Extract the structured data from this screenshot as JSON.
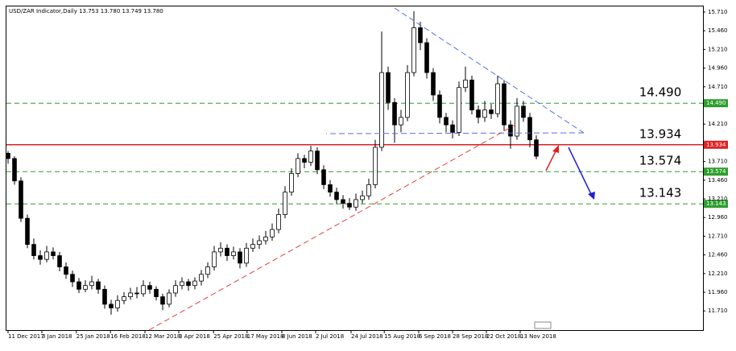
{
  "chart_data": {
    "type": "candlestick",
    "title": "USD/ZAR Indicator,Daily  13.753 13.780 13.749 13.780",
    "up_color": "#ffffff",
    "down_color": "#000000",
    "wick_color": "#000000",
    "xlim": [
      -0.25,
      107.875
    ],
    "ylim": [
      11.454,
      15.785
    ],
    "yticks": [
      {
        "value": 15.71,
        "label": "15.710"
      },
      {
        "value": 15.46,
        "label": "15.460"
      },
      {
        "value": 15.21,
        "label": "15.210"
      },
      {
        "value": 14.96,
        "label": "14.960"
      },
      {
        "value": 14.71,
        "label": "14.710"
      },
      {
        "value": 14.21,
        "label": "14.210"
      },
      {
        "value": 13.71,
        "label": "13.710"
      },
      {
        "value": 13.46,
        "label": "13.460"
      },
      {
        "value": 13.21,
        "label": "13.210"
      },
      {
        "value": 12.96,
        "label": "12.960"
      },
      {
        "value": 12.71,
        "label": "12.710"
      },
      {
        "value": 12.46,
        "label": "12.460"
      },
      {
        "value": 12.21,
        "label": "12.210"
      },
      {
        "value": 11.96,
        "label": "11.960"
      },
      {
        "value": 11.71,
        "label": "11.710"
      }
    ],
    "xticks": [
      {
        "value": 0,
        "label": "11 Dec 2017"
      },
      {
        "value": 5.25,
        "label": "3 Jan 2018"
      },
      {
        "value": 10.6,
        "label": "25 Jan 2018"
      },
      {
        "value": 15.9,
        "label": "16 Feb 2018"
      },
      {
        "value": 21.25,
        "label": "12 Mar 2018"
      },
      {
        "value": 26.5,
        "label": "3 Apr 2018"
      },
      {
        "value": 31.9,
        "label": "25 Apr 2018"
      },
      {
        "value": 37.1,
        "label": "17 May 2018"
      },
      {
        "value": 42.5,
        "label": "8 Jun 2018"
      },
      {
        "value": 47.75,
        "label": "2 Jul 2018"
      },
      {
        "value": 53.25,
        "label": "24 Jul 2018"
      },
      {
        "value": 58.4,
        "label": "15 Aug 2018"
      },
      {
        "value": 63.75,
        "label": "6 Sep 2018"
      },
      {
        "value": 69,
        "label": "28 Sep 2018"
      },
      {
        "value": 74.25,
        "label": "22 Oct 2018"
      },
      {
        "value": 79.5,
        "label": "13 Nov 2018"
      }
    ],
    "levels": [
      {
        "value": 14.49,
        "label": "14.490",
        "color": "#2e9e2e",
        "style": "dashed"
      },
      {
        "value": 13.934,
        "label": "13.934",
        "color": "#e02020",
        "style": "solid"
      },
      {
        "value": 13.574,
        "label": "13.574",
        "color": "#2e9e2e",
        "style": "dashed"
      },
      {
        "value": 13.143,
        "label": "13.143",
        "color": "#2e9e2e",
        "style": "dashed"
      }
    ],
    "candles": [
      [
        13.82,
        13.85,
        13.68,
        13.75
      ],
      [
        13.75,
        13.78,
        13.4,
        13.45
      ],
      [
        13.45,
        13.5,
        12.9,
        12.95
      ],
      [
        12.95,
        13.0,
        12.55,
        12.6
      ],
      [
        12.6,
        12.68,
        12.4,
        12.45
      ],
      [
        12.45,
        12.52,
        12.33,
        12.4
      ],
      [
        12.4,
        12.58,
        12.36,
        12.5
      ],
      [
        12.5,
        12.56,
        12.4,
        12.45
      ],
      [
        12.45,
        12.5,
        12.24,
        12.3
      ],
      [
        12.3,
        12.36,
        12.14,
        12.2
      ],
      [
        12.2,
        12.25,
        12.03,
        12.1
      ],
      [
        12.1,
        12.15,
        11.95,
        12.0
      ],
      [
        12.0,
        12.12,
        11.96,
        12.05
      ],
      [
        12.05,
        12.18,
        12.0,
        12.1
      ],
      [
        12.1,
        12.14,
        11.94,
        12.0
      ],
      [
        12.0,
        12.05,
        11.74,
        11.8
      ],
      [
        11.8,
        11.86,
        11.66,
        11.75
      ],
      [
        11.75,
        11.92,
        11.7,
        11.85
      ],
      [
        11.85,
        11.96,
        11.8,
        11.9
      ],
      [
        11.9,
        12.02,
        11.86,
        11.95
      ],
      [
        11.95,
        12.03,
        11.88,
        11.94
      ],
      [
        11.94,
        12.12,
        11.9,
        12.05
      ],
      [
        12.05,
        12.1,
        11.94,
        12.0
      ],
      [
        12.0,
        12.04,
        11.85,
        11.9
      ],
      [
        11.9,
        11.94,
        11.72,
        11.8
      ],
      [
        11.8,
        12.0,
        11.76,
        11.95
      ],
      [
        11.95,
        12.12,
        11.9,
        12.05
      ],
      [
        12.05,
        12.16,
        12.0,
        12.1
      ],
      [
        12.1,
        12.14,
        11.98,
        12.05
      ],
      [
        12.05,
        12.16,
        12.0,
        12.11
      ],
      [
        12.11,
        12.26,
        12.05,
        12.2
      ],
      [
        12.2,
        12.36,
        12.15,
        12.3
      ],
      [
        12.3,
        12.58,
        12.25,
        12.5
      ],
      [
        12.5,
        12.63,
        12.44,
        12.55
      ],
      [
        12.55,
        12.6,
        12.38,
        12.45
      ],
      [
        12.45,
        12.57,
        12.4,
        12.5
      ],
      [
        12.5,
        12.55,
        12.28,
        12.35
      ],
      [
        12.35,
        12.62,
        12.3,
        12.55
      ],
      [
        12.55,
        12.68,
        12.5,
        12.6
      ],
      [
        12.6,
        12.72,
        12.54,
        12.65
      ],
      [
        12.65,
        12.78,
        12.6,
        12.7
      ],
      [
        12.7,
        12.88,
        12.65,
        12.8
      ],
      [
        12.8,
        13.08,
        12.75,
        13.0
      ],
      [
        13.0,
        13.38,
        12.95,
        13.3
      ],
      [
        13.3,
        13.62,
        13.25,
        13.55
      ],
      [
        13.55,
        13.82,
        13.5,
        13.75
      ],
      [
        13.75,
        13.8,
        13.62,
        13.7
      ],
      [
        13.7,
        13.92,
        13.65,
        13.85
      ],
      [
        13.85,
        13.9,
        13.54,
        13.6
      ],
      [
        13.6,
        13.66,
        13.34,
        13.4
      ],
      [
        13.4,
        13.46,
        13.24,
        13.3
      ],
      [
        13.3,
        13.36,
        13.14,
        13.2
      ],
      [
        13.2,
        13.26,
        13.08,
        13.15
      ],
      [
        13.15,
        13.22,
        13.06,
        13.1
      ],
      [
        13.1,
        13.28,
        13.05,
        13.2
      ],
      [
        13.2,
        13.32,
        13.15,
        13.25
      ],
      [
        13.25,
        13.48,
        13.2,
        13.4
      ],
      [
        13.4,
        14.0,
        13.35,
        13.9
      ],
      [
        13.9,
        15.45,
        13.85,
        14.9
      ],
      [
        14.9,
        14.98,
        14.4,
        14.5
      ],
      [
        14.5,
        14.56,
        13.96,
        14.2
      ],
      [
        14.2,
        14.4,
        14.1,
        14.3
      ],
      [
        14.3,
        15.0,
        14.25,
        14.9
      ],
      [
        14.9,
        15.72,
        14.85,
        15.5
      ],
      [
        15.5,
        15.58,
        15.2,
        15.3
      ],
      [
        15.3,
        15.36,
        14.82,
        14.9
      ],
      [
        14.9,
        14.96,
        14.52,
        14.6
      ],
      [
        14.6,
        14.66,
        14.22,
        14.3
      ],
      [
        14.3,
        14.36,
        14.1,
        14.2
      ],
      [
        14.2,
        14.26,
        14.02,
        14.1
      ],
      [
        14.1,
        14.78,
        14.05,
        14.7
      ],
      [
        14.7,
        14.98,
        14.64,
        14.8
      ],
      [
        14.8,
        14.86,
        14.34,
        14.4
      ],
      [
        14.4,
        14.46,
        14.22,
        14.3
      ],
      [
        14.3,
        14.52,
        14.24,
        14.4
      ],
      [
        14.4,
        14.48,
        14.28,
        14.35
      ],
      [
        14.35,
        14.86,
        14.3,
        14.75
      ],
      [
        14.75,
        14.8,
        14.12,
        14.2
      ],
      [
        14.2,
        14.26,
        13.88,
        14.05
      ],
      [
        14.05,
        14.56,
        14.0,
        14.45
      ],
      [
        14.45,
        14.52,
        14.24,
        14.3
      ],
      [
        14.3,
        14.36,
        13.9,
        14.0
      ],
      [
        14.0,
        14.06,
        13.74,
        13.78
      ]
    ]
  }
}
